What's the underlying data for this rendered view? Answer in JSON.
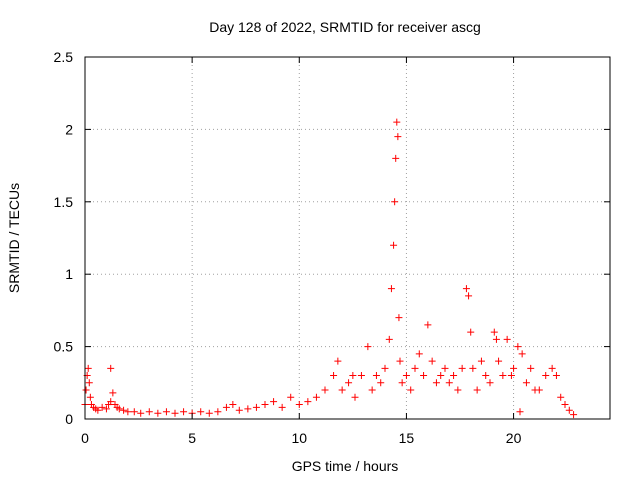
{
  "chart_data": {
    "type": "scatter",
    "title": "Day 128 of 2022, SRMTID for receiver ascg",
    "xlabel": "GPS time / hours",
    "ylabel": "SRMTID / TECUs",
    "xlim": [
      0,
      24.5
    ],
    "ylim": [
      0,
      2.5
    ],
    "x_ticks": [
      0,
      5,
      10,
      15,
      20
    ],
    "x_tick_labels": [
      "0",
      "5",
      "10",
      "15",
      "20"
    ],
    "y_ticks": [
      0,
      0.5,
      1,
      1.5,
      2,
      2.5
    ],
    "y_tick_labels": [
      "0",
      "0.5",
      "1",
      "1.5",
      "2",
      "2.5"
    ],
    "grid": true,
    "marker": "plus",
    "series": [
      {
        "name": "SRMTID",
        "color": "#ff0000",
        "x": [
          0.0,
          0.05,
          0.1,
          0.15,
          0.2,
          0.25,
          0.3,
          0.4,
          0.5,
          0.6,
          0.8,
          1.0,
          1.1,
          1.2,
          1.3,
          1.4,
          1.5,
          1.6,
          1.8,
          2.0,
          2.3,
          2.6,
          3.0,
          3.4,
          3.8,
          4.2,
          4.6,
          5.0,
          5.4,
          5.8,
          6.2,
          6.6,
          6.9,
          7.2,
          7.6,
          8.0,
          8.4,
          8.8,
          9.2,
          9.6,
          10.0,
          10.4,
          10.8,
          11.2,
          11.6,
          11.8,
          12.0,
          12.3,
          12.6,
          12.9,
          13.2,
          13.4,
          13.6,
          13.8,
          14.0,
          14.2,
          14.3,
          14.4,
          14.45,
          14.5,
          14.55,
          14.6,
          14.65,
          14.7,
          14.8,
          15.0,
          15.2,
          15.4,
          15.6,
          15.8,
          16.0,
          16.2,
          16.4,
          16.6,
          16.8,
          17.0,
          17.2,
          17.4,
          17.6,
          17.8,
          17.9,
          18.0,
          18.1,
          18.3,
          18.5,
          18.7,
          18.9,
          19.1,
          19.2,
          19.3,
          19.5,
          19.7,
          19.9,
          20.0,
          20.2,
          20.4,
          20.6,
          20.8,
          21.0,
          21.2,
          21.5,
          21.8,
          22.0,
          22.2,
          22.4,
          22.6,
          22.8,
          1.2,
          20.3,
          12.5
        ],
        "values": [
          0.1,
          0.2,
          0.3,
          0.35,
          0.25,
          0.15,
          0.1,
          0.08,
          0.07,
          0.06,
          0.08,
          0.07,
          0.1,
          0.12,
          0.18,
          0.1,
          0.08,
          0.07,
          0.06,
          0.05,
          0.05,
          0.04,
          0.05,
          0.04,
          0.05,
          0.04,
          0.05,
          0.04,
          0.05,
          0.04,
          0.05,
          0.08,
          0.1,
          0.06,
          0.07,
          0.08,
          0.1,
          0.12,
          0.08,
          0.15,
          0.1,
          0.12,
          0.15,
          0.2,
          0.3,
          0.4,
          0.2,
          0.25,
          0.15,
          0.3,
          0.5,
          0.2,
          0.3,
          0.25,
          0.35,
          0.55,
          0.9,
          1.2,
          1.5,
          1.8,
          2.05,
          1.95,
          0.7,
          0.4,
          0.25,
          0.3,
          0.2,
          0.35,
          0.45,
          0.3,
          0.65,
          0.4,
          0.25,
          0.3,
          0.35,
          0.25,
          0.3,
          0.2,
          0.35,
          0.9,
          0.85,
          0.6,
          0.35,
          0.2,
          0.4,
          0.3,
          0.25,
          0.6,
          0.55,
          0.4,
          0.3,
          0.55,
          0.3,
          0.35,
          0.5,
          0.45,
          0.25,
          0.35,
          0.2,
          0.2,
          0.3,
          0.35,
          0.3,
          0.15,
          0.1,
          0.06,
          0.03,
          0.35,
          0.05,
          0.3
        ]
      }
    ]
  }
}
